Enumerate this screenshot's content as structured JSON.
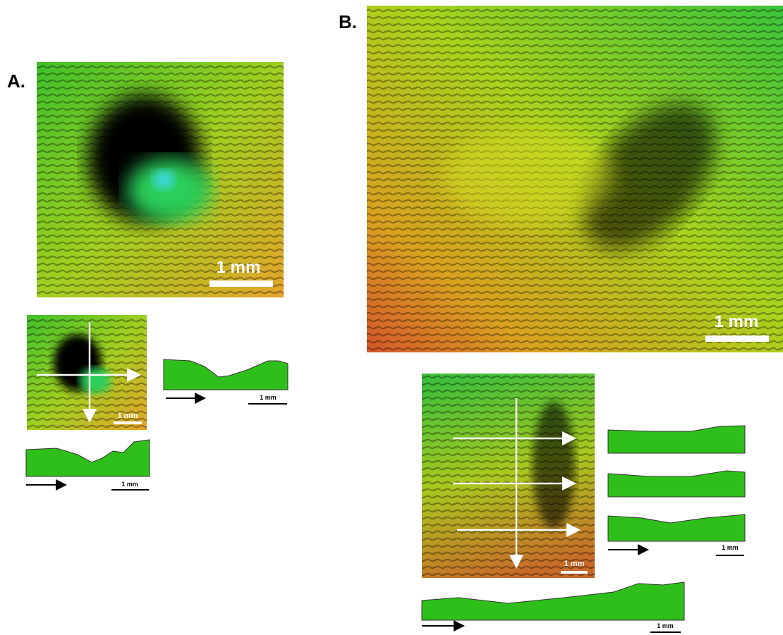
{
  "panels": [
    {
      "label": "A.",
      "scale_labels": [
        "1 mm",
        "1 mm",
        "1 mm",
        "1 mm"
      ]
    },
    {
      "label": "B.",
      "scale_labels": [
        "1 mm",
        "1 mm",
        "1 mm",
        "1 mm"
      ]
    }
  ]
}
